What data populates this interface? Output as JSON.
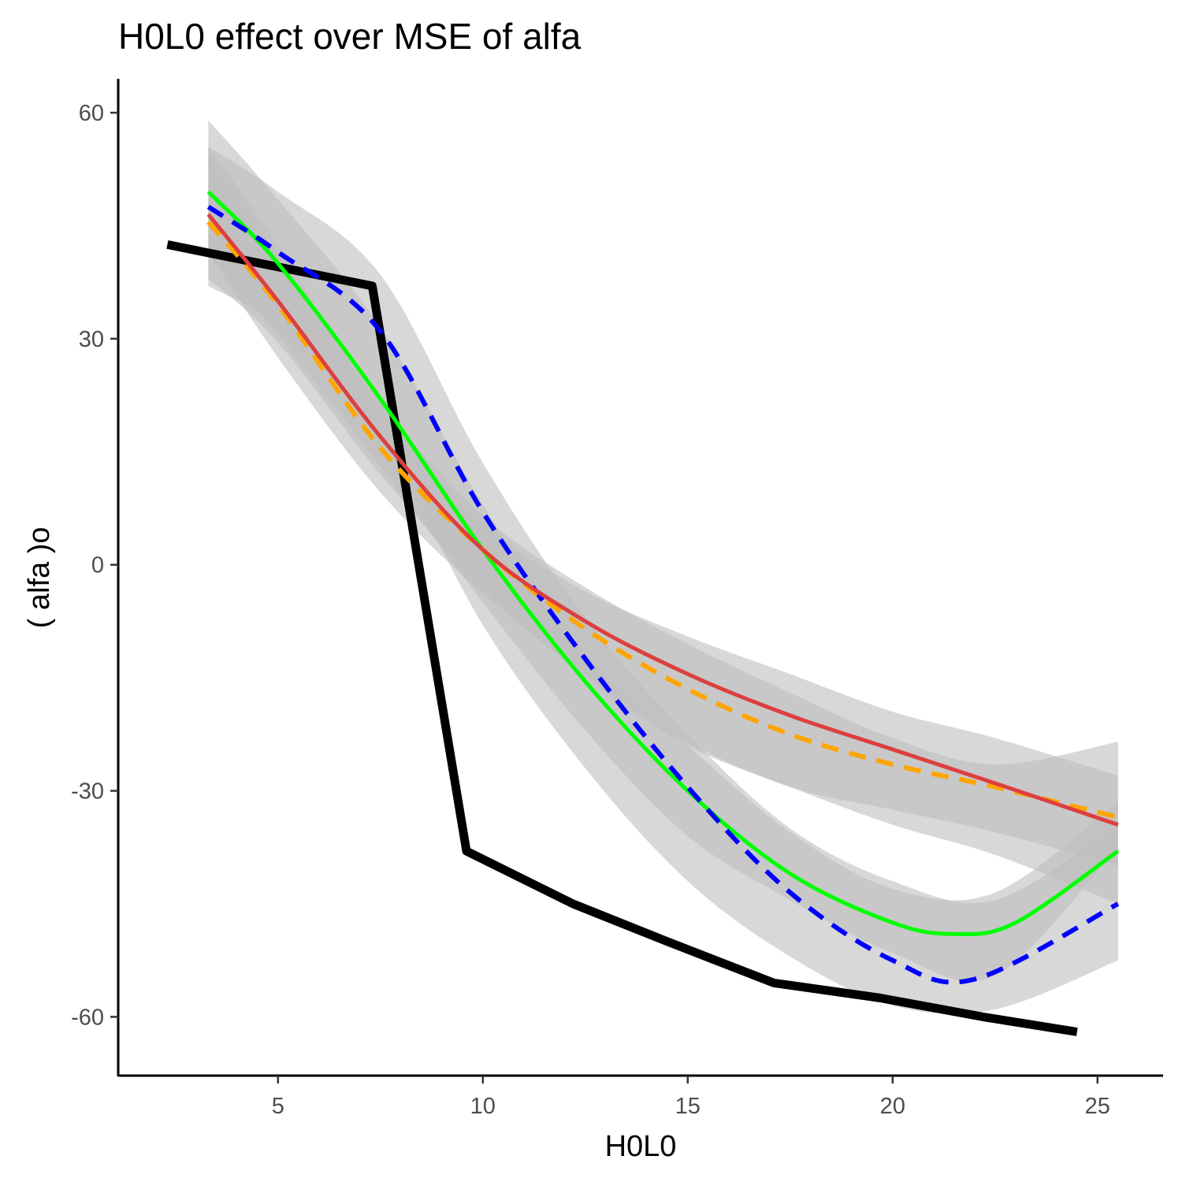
{
  "chart_data": {
    "type": "line",
    "title": "H0L0 effect over MSE of  alfa",
    "xlabel": "H0L0",
    "ylabel": "( alfa )o",
    "xlim": [
      1.1,
      26.6
    ],
    "ylim": [
      -67.8,
      64.5
    ],
    "x_ticks": [
      5,
      10,
      15,
      20,
      25
    ],
    "y_ticks": [
      60,
      30,
      0,
      -30,
      -60
    ],
    "x_tick_labels": [
      "5",
      "10",
      "15",
      "20",
      "25"
    ],
    "y_tick_labels": [
      "60",
      "30",
      "0",
      "-30",
      "-60"
    ],
    "grid": false,
    "legend": "none",
    "bands": [
      {
        "color": "#bebebe",
        "opacity": 0.6,
        "x": [
          3.3,
          5,
          7.5,
          10,
          12.5,
          15,
          17.5,
          20,
          22.5,
          25.5
        ],
        "lower": [
          41.5,
          27.5,
          9.6,
          -3.8,
          -14.5,
          -23.5,
          -29.5,
          -32.5,
          -35.5,
          -40
        ],
        "upper": [
          55.5,
          42.5,
          20.6,
          5.6,
          -3.5,
          -9.5,
          -14.5,
          -19.5,
          -23.0,
          -28
        ]
      },
      {
        "color": "#bebebe",
        "opacity": 0.6,
        "x": [
          3.3,
          5,
          7.5,
          10,
          12.5,
          15,
          17.5,
          20,
          22.5,
          25.5
        ],
        "lower": [
          38,
          29.5,
          12.0,
          -3.0,
          -15.0,
          -24.0,
          -29.5,
          -34.5,
          -38.5,
          -45
        ],
        "upper": [
          54,
          41,
          21.5,
          6.5,
          -3.0,
          -10.5,
          -17.0,
          -23.0,
          -26.5,
          -23.5
        ]
      },
      {
        "color": "#bebebe",
        "opacity": 0.6,
        "x": [
          3.3,
          5,
          7.5,
          10,
          12.5,
          15,
          17.5,
          20,
          22.5,
          25.5
        ],
        "lower": [
          41,
          30.5,
          13.0,
          -5.0,
          -22.0,
          -36.0,
          -44.5,
          -51.5,
          -54.5,
          -37.5
        ],
        "upper": [
          59,
          48.5,
          31.5,
          8.0,
          -12.0,
          -24.0,
          -35.5,
          -43.0,
          -43.5,
          -31.5
        ]
      },
      {
        "color": "#bebebe",
        "opacity": 0.6,
        "x": [
          3.3,
          5,
          7.5,
          10,
          12.5,
          15,
          17.5,
          20,
          22.5,
          25.5
        ],
        "lower": [
          37,
          31.5,
          17.0,
          -8.0,
          -27.0,
          -42.0,
          -52.0,
          -58.5,
          -59.0,
          -52.5
        ],
        "upper": [
          55.5,
          49.5,
          38.5,
          13.5,
          -7.0,
          -22.5,
          -35.0,
          -42.0,
          -44.5,
          -34.5
        ]
      }
    ],
    "series": [
      {
        "color": "#000000",
        "width": 11,
        "dash": "",
        "x": [
          2.3,
          7.3,
          9.6,
          12.2,
          14.5,
          17.1,
          19.7,
          22.2,
          24.5
        ],
        "y": [
          42.5,
          37,
          -38,
          -45,
          -50,
          -55.5,
          -57.5,
          -60,
          -62
        ]
      },
      {
        "color": "#00ff00",
        "width": 5,
        "dash": "",
        "x": [
          3.3,
          5,
          7.5,
          10,
          12.5,
          15,
          17.5,
          20,
          21.5,
          23,
          25.5
        ],
        "y": [
          49.5,
          40,
          22,
          2,
          -15.5,
          -30,
          -41,
          -47.5,
          -49,
          -47.5,
          -38
        ]
      },
      {
        "color": "#0000ff",
        "width": 6,
        "dash": "22 14",
        "x": [
          3.3,
          5,
          7.5,
          10,
          12.5,
          15,
          17.5,
          20,
          22,
          25.5
        ],
        "y": [
          47.5,
          41.5,
          31,
          7,
          -12.5,
          -29.5,
          -43.5,
          -52.5,
          -55,
          -45
        ]
      },
      {
        "color": "#ffa500",
        "width": 6,
        "dash": "22 14",
        "x": [
          3.3,
          5,
          7.5,
          10,
          12.5,
          15,
          17.5,
          20,
          22.5,
          25.5
        ],
        "y": [
          45.5,
          34.5,
          15.5,
          2,
          -8.5,
          -16.5,
          -22.5,
          -26.5,
          -29.5,
          -33.5
        ]
      },
      {
        "color": "#dd3f3f",
        "width": 5,
        "dash": "",
        "x": [
          3.3,
          5,
          7.5,
          10,
          12.5,
          15,
          17.5,
          20,
          22.5,
          25.5
        ],
        "y": [
          46.5,
          35.0,
          17.0,
          2.0,
          -7.5,
          -14.5,
          -20.0,
          -24.5,
          -29.0,
          -34.5
        ]
      }
    ]
  }
}
